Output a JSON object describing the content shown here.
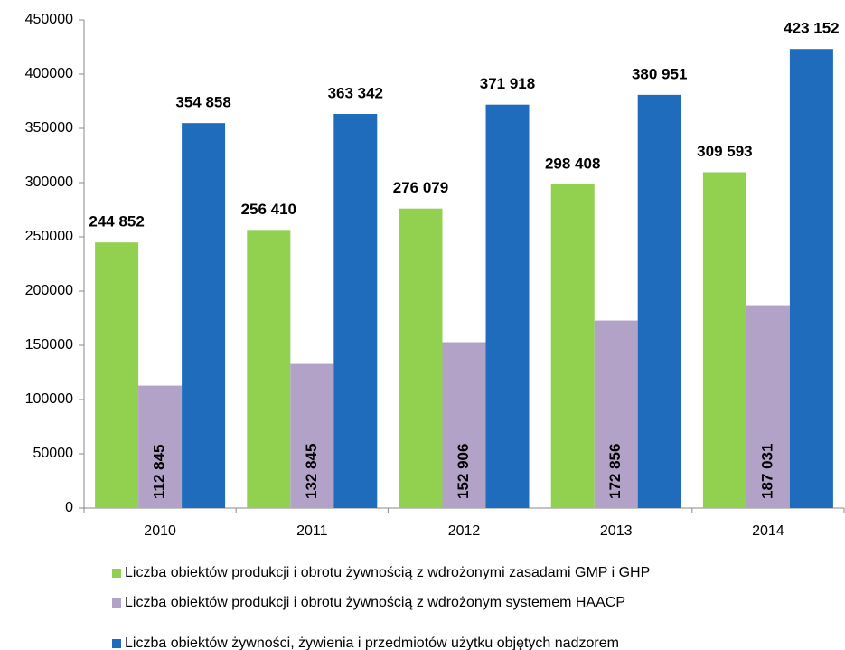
{
  "chart_data": {
    "type": "bar",
    "categories": [
      "2010",
      "2011",
      "2012",
      "2013",
      "2014"
    ],
    "series": [
      {
        "name": "Liczba obiektów produkcji i obrotu żywnością z wdrożonymi zasadami GMP i GHP",
        "color": "#92d050",
        "values": [
          244852,
          256410,
          276079,
          298408,
          309593
        ],
        "value_labels": [
          "244 852",
          "256 410",
          "276 079",
          "298 408",
          "309 593"
        ]
      },
      {
        "name": "Liczba obiektów produkcji i obrotu żywnością z wdrożonym systemem HAACP",
        "color": "#b3a2c7",
        "values": [
          112845,
          132845,
          152906,
          172856,
          187031
        ],
        "value_labels": [
          "112 845",
          "132 845",
          "152 906",
          "172 856",
          "187 031"
        ]
      },
      {
        "name": "Liczba obiektów żywności, żywienia i przedmiotów użytku objętych nadzorem",
        "color": "#1f6cbd",
        "values": [
          354858,
          363342,
          371918,
          380951,
          423152
        ],
        "value_labels": [
          "354 858",
          "363 342",
          "371 918",
          "380 951",
          "423 152"
        ]
      }
    ],
    "ylim": [
      0,
      450000
    ],
    "yticks": [
      0,
      50000,
      100000,
      150000,
      200000,
      250000,
      300000,
      350000,
      400000,
      450000
    ],
    "grid": false,
    "legend": "bottom"
  }
}
